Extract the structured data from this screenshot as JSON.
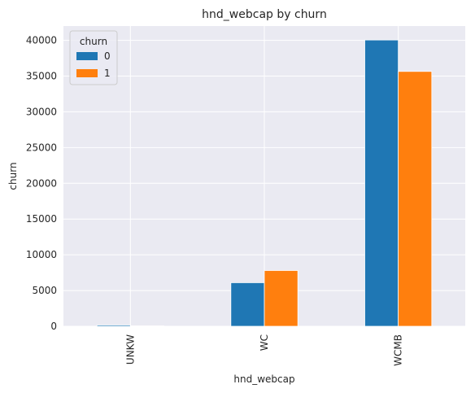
{
  "chart_data": {
    "type": "bar",
    "title": "hnd_webcap by churn",
    "xlabel": "hnd_webcap",
    "ylabel": "churn",
    "categories": [
      "UNKW",
      "WC",
      "WCMB"
    ],
    "series": [
      {
        "name": "0",
        "values": [
          170,
          6100,
          40050
        ]
      },
      {
        "name": "1",
        "values": [
          60,
          7800,
          35650
        ]
      }
    ],
    "ylim": [
      0,
      42000
    ],
    "yticks": [
      0,
      5000,
      10000,
      15000,
      20000,
      25000,
      30000,
      35000,
      40000
    ],
    "legend": {
      "title": "churn",
      "placement": "top-left"
    },
    "grid": true,
    "colors": {
      "series0": "#1f77b4",
      "series1": "#ff7f0e",
      "plot_bg": "#eaeaf2",
      "grid": "#ffffff"
    }
  }
}
